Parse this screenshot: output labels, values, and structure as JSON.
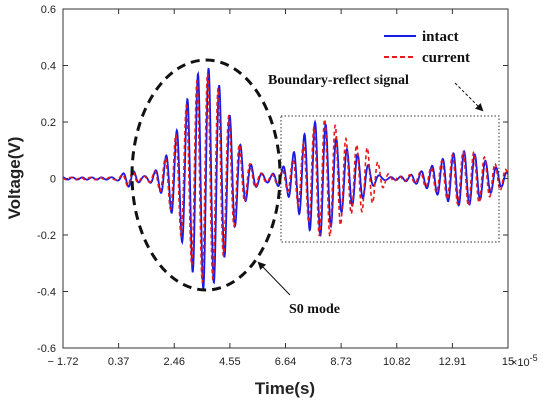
{
  "chart_data": {
    "type": "line",
    "title": "",
    "xlabel": "Time(s)",
    "ylabel": "Voltage(V)",
    "x_exponent_label": "×10",
    "x_exponent_power": "-5",
    "xlim": [
      -1.72,
      15.0
    ],
    "ylim": [
      -0.6,
      0.6
    ],
    "x_ticks": [
      "− 1.72",
      "0.37",
      "2.46",
      "4.55",
      "6.64",
      "8.73",
      "10.82",
      "12.91",
      "15"
    ],
    "x_tick_values": [
      -1.72,
      0.37,
      2.46,
      4.55,
      6.64,
      8.73,
      10.82,
      12.91,
      15.0
    ],
    "y_ticks": [
      "0.6",
      "0.4",
      "0.2",
      "0",
      "-0.2",
      "-0.4",
      "-0.6"
    ],
    "y_tick_values": [
      0.6,
      0.4,
      0.2,
      0,
      -0.2,
      -0.4,
      -0.6
    ],
    "legend_position": "top-right",
    "series": [
      {
        "name": "intact",
        "color": "#1a1ae6",
        "dash": "solid",
        "packets": [
          {
            "center": 0.8,
            "amp": 0.03,
            "sigma": 0.25
          },
          {
            "center": 3.65,
            "amp": 0.39,
            "sigma": 0.85
          },
          {
            "center": 7.9,
            "amp": 0.2,
            "sigma": 0.75
          },
          {
            "center": 9.4,
            "amp": 0.06,
            "sigma": 0.4
          },
          {
            "center": 13.3,
            "amp": 0.1,
            "sigma": 0.9
          }
        ],
        "period": 0.4,
        "phase": 0
      },
      {
        "name": "current",
        "color": "#e61a1a",
        "dash": "dashed",
        "packets": [
          {
            "center": 0.8,
            "amp": 0.03,
            "sigma": 0.25
          },
          {
            "center": 3.65,
            "amp": 0.37,
            "sigma": 0.85
          },
          {
            "center": 8.15,
            "amp": 0.21,
            "sigma": 0.8
          },
          {
            "center": 9.7,
            "amp": 0.08,
            "sigma": 0.4
          },
          {
            "center": 13.4,
            "amp": 0.1,
            "sigma": 0.95
          }
        ],
        "period": 0.4,
        "phase": 0.6
      }
    ],
    "annotations": [
      {
        "text": "S0 mode",
        "target": "first wave packet (ellipse)"
      },
      {
        "text": "Boundary-reflect signal",
        "target": "dotted rectangle region"
      }
    ]
  }
}
